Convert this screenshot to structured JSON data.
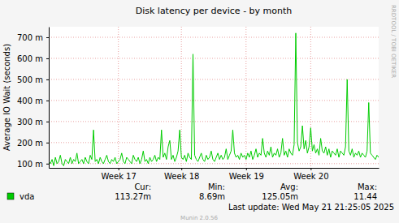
{
  "chart_data": {
    "type": "line",
    "title": "Disk latency per device - by month",
    "y_label": "Average IO Wait (seconds)",
    "grid": true,
    "legend": "bottom",
    "ylim": [
      0.08,
      0.75
    ],
    "yticks": [
      {
        "value": 0.1,
        "label": "100 m"
      },
      {
        "value": 0.2,
        "label": "200 m"
      },
      {
        "value": 0.3,
        "label": "300 m"
      },
      {
        "value": 0.4,
        "label": "400 m"
      },
      {
        "value": 0.5,
        "label": "500 m"
      },
      {
        "value": 0.6,
        "label": "600 m"
      },
      {
        "value": 0.7,
        "label": "700 m"
      }
    ],
    "categories": [
      null,
      null,
      null,
      null,
      null,
      null,
      null,
      null,
      null,
      null,
      null,
      null,
      null,
      null,
      null,
      null,
      null,
      null,
      null,
      null,
      null,
      null,
      null,
      null,
      null,
      null,
      null,
      null,
      null,
      null,
      null,
      null,
      null,
      null,
      null,
      null,
      null,
      null,
      null,
      null,
      null,
      null,
      "Week 17",
      null,
      null,
      null,
      null,
      null,
      null,
      null,
      null,
      null,
      null,
      null,
      null,
      null,
      null,
      null,
      null,
      null,
      null,
      null,
      null,
      null,
      null,
      null,
      null,
      null,
      null,
      null,
      null,
      null,
      null,
      null,
      null,
      null,
      null,
      null,
      null,
      null,
      "Week 18",
      null,
      null,
      null,
      null,
      null,
      null,
      null,
      null,
      null,
      null,
      null,
      null,
      null,
      null,
      null,
      null,
      null,
      null,
      null,
      null,
      null,
      null,
      null,
      null,
      null,
      null,
      null,
      null,
      null,
      null,
      null,
      null,
      null,
      null,
      null,
      null,
      null,
      null,
      "Week 19",
      null,
      null,
      null,
      null,
      null,
      null,
      null,
      null,
      null,
      null,
      null,
      null,
      null,
      null,
      null,
      null,
      null,
      null,
      null,
      null,
      null,
      null,
      null,
      null,
      null,
      null,
      null,
      null,
      null,
      null,
      null,
      null,
      null,
      null,
      null,
      null,
      null,
      null,
      "Week 20",
      null,
      null,
      null,
      null,
      null,
      null,
      null,
      null,
      null,
      null,
      null,
      null,
      null,
      null,
      null,
      null,
      null,
      null,
      null,
      null,
      null,
      null,
      null,
      null,
      null,
      null,
      null,
      null,
      null,
      null,
      null,
      null,
      null,
      null,
      null,
      null,
      null,
      null,
      null,
      null,
      null
    ],
    "series": [
      {
        "name": "vda",
        "color": "#00cc00",
        "values": [
          0.11,
          0.1,
          0.12,
          0.09,
          0.13,
          0.1,
          0.11,
          0.14,
          0.1,
          0.09,
          0.12,
          0.11,
          0.1,
          0.13,
          0.1,
          0.12,
          0.11,
          0.15,
          0.1,
          0.11,
          0.12,
          0.1,
          0.13,
          0.11,
          0.1,
          0.14,
          0.12,
          0.26,
          0.11,
          0.12,
          0.1,
          0.13,
          0.11,
          0.1,
          0.12,
          0.14,
          0.11,
          0.1,
          0.12,
          0.11,
          0.13,
          0.1,
          0.11,
          0.12,
          0.15,
          0.11,
          0.1,
          0.13,
          0.12,
          0.11,
          0.1,
          0.14,
          0.12,
          0.11,
          0.13,
          0.1,
          0.12,
          0.16,
          0.11,
          0.12,
          0.1,
          0.13,
          0.11,
          0.12,
          0.14,
          0.11,
          0.13,
          0.12,
          0.26,
          0.13,
          0.15,
          0.12,
          0.18,
          0.21,
          0.12,
          0.14,
          0.11,
          0.13,
          0.16,
          0.26,
          0.13,
          0.12,
          0.14,
          0.11,
          0.15,
          0.13,
          0.12,
          0.62,
          0.14,
          0.12,
          0.11,
          0.13,
          0.15,
          0.12,
          0.11,
          0.14,
          0.12,
          0.13,
          0.16,
          0.12,
          0.11,
          0.13,
          0.15,
          0.12,
          0.14,
          0.12,
          0.13,
          0.17,
          0.12,
          0.14,
          0.16,
          0.26,
          0.15,
          0.13,
          0.14,
          0.12,
          0.15,
          0.13,
          0.14,
          0.12,
          0.15,
          0.13,
          0.16,
          0.12,
          0.14,
          0.17,
          0.13,
          0.15,
          0.14,
          0.22,
          0.15,
          0.13,
          0.16,
          0.14,
          0.18,
          0.13,
          0.15,
          0.14,
          0.17,
          0.13,
          0.15,
          0.22,
          0.14,
          0.16,
          0.13,
          0.17,
          0.15,
          0.14,
          0.19,
          0.72,
          0.2,
          0.16,
          0.18,
          0.28,
          0.17,
          0.21,
          0.15,
          0.18,
          0.27,
          0.16,
          0.19,
          0.15,
          0.17,
          0.14,
          0.22,
          0.16,
          0.15,
          0.18,
          0.14,
          0.17,
          0.13,
          0.16,
          0.15,
          0.14,
          0.17,
          0.13,
          0.16,
          0.15,
          0.14,
          0.18,
          0.5,
          0.16,
          0.14,
          0.17,
          0.13,
          0.15,
          0.14,
          0.16,
          0.13,
          0.15,
          0.14,
          0.13,
          0.16,
          0.39,
          0.15,
          0.14,
          0.13,
          0.12,
          0.14,
          0.13
        ]
      }
    ],
    "stats": [
      {
        "label": "Cur:",
        "value": "113.27m"
      },
      {
        "label": "Min:",
        "value": "8.69m"
      },
      {
        "label": "Avg:",
        "value": "125.05m"
      },
      {
        "label": "Max:",
        "value": "11.44"
      }
    ],
    "last_update": "Last update: Wed May 21 21:25:05 2025",
    "generator": "Munin 2.0.56",
    "watermark": "RRDTOOL / TOBI OETIKER"
  }
}
